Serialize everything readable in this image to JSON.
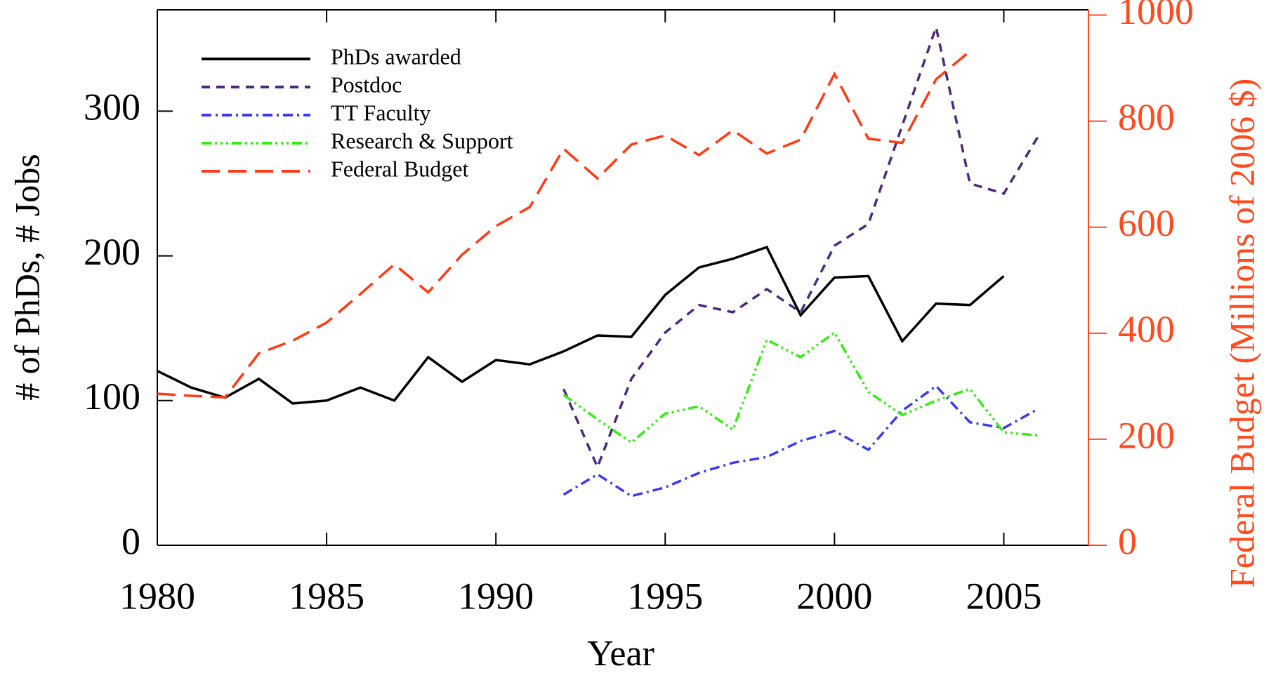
{
  "chart_data": {
    "type": "line",
    "xlabel": "Year",
    "ylabel": "# of PhDs, # Jobs",
    "y2label": "Federal Budget (Millions of 2006 $)",
    "x": [
      1980,
      1981,
      1982,
      1983,
      1984,
      1985,
      1986,
      1987,
      1988,
      1989,
      1990,
      1991,
      1992,
      1993,
      1994,
      1995,
      1996,
      1997,
      1998,
      1999,
      2000,
      2001,
      2002,
      2003,
      2004,
      2005,
      2006
    ],
    "series": [
      {
        "name": "PhDs awarded",
        "color": "#000000",
        "dash": "none",
        "values": [
          120.5,
          109,
          102,
          115,
          98,
          100,
          109,
          100,
          130,
          113,
          128,
          125,
          134,
          145,
          144,
          173,
          192,
          198,
          206,
          159,
          185,
          186,
          141,
          167,
          166,
          186,
          null
        ]
      },
      {
        "name": "Postdoc",
        "color": "#4b2a7a",
        "dash": "12,9",
        "values": [
          null,
          null,
          null,
          null,
          null,
          null,
          null,
          null,
          null,
          null,
          null,
          null,
          108,
          54,
          115,
          147,
          166,
          161,
          177,
          161,
          207,
          222,
          290,
          358,
          250,
          243,
          282
        ]
      },
      {
        "name": "TT Faculty",
        "color": "#3b3bee",
        "dash": "14,6,3,6",
        "values": [
          null,
          null,
          null,
          null,
          null,
          null,
          null,
          null,
          null,
          null,
          null,
          null,
          35,
          49,
          34,
          40,
          50,
          57,
          61,
          72,
          79,
          66,
          93,
          110,
          85,
          81,
          94
        ]
      },
      {
        "name": "Research & Support",
        "color": "#33ee11",
        "dash": "14,5,3,5,3,5,3,5",
        "values": [
          null,
          null,
          null,
          null,
          null,
          null,
          null,
          null,
          null,
          null,
          null,
          null,
          104,
          87,
          71,
          91,
          96,
          80,
          142,
          130,
          147,
          106,
          90,
          100,
          108,
          78,
          76
        ]
      },
      {
        "name": "Federal Budget",
        "color": "#ff3a14",
        "dash": "26,12",
        "axis": "y2",
        "values": [
          286,
          282,
          279,
          362,
          386,
          420,
          474,
          530,
          477,
          548,
          602,
          638,
          748,
          692,
          756,
          773,
          736,
          783,
          739,
          765,
          889,
          767,
          759,
          879,
          932,
          null,
          null
        ]
      }
    ],
    "xlim": [
      1980,
      2007.5
    ],
    "xticks": [
      1980,
      1985,
      1990,
      1995,
      2000,
      2005
    ],
    "ylim": [
      0,
      370
    ],
    "yticks": [
      0,
      100,
      200,
      300
    ],
    "y2lim": [
      0,
      1010
    ],
    "y2ticks": [
      0,
      200,
      400,
      600,
      800,
      1000
    ],
    "y2color": "#ff4a1e",
    "legend": "upper left"
  }
}
